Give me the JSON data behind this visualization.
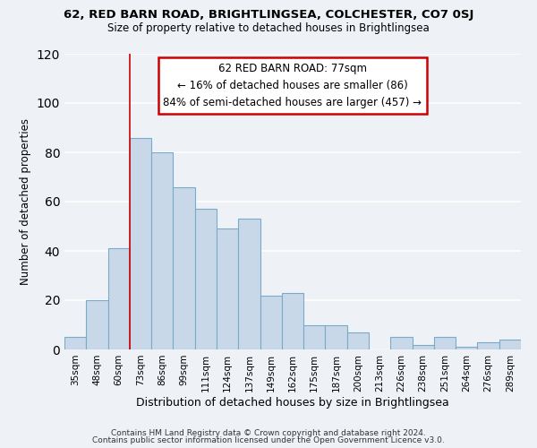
{
  "title1": "62, RED BARN ROAD, BRIGHTLINGSEA, COLCHESTER, CO7 0SJ",
  "title2": "Size of property relative to detached houses in Brightlingsea",
  "xlabel": "Distribution of detached houses by size in Brightlingsea",
  "ylabel": "Number of detached properties",
  "footer1": "Contains HM Land Registry data © Crown copyright and database right 2024.",
  "footer2": "Contains public sector information licensed under the Open Government Licence v3.0.",
  "bar_labels": [
    "35sqm",
    "48sqm",
    "60sqm",
    "73sqm",
    "86sqm",
    "99sqm",
    "111sqm",
    "124sqm",
    "137sqm",
    "149sqm",
    "162sqm",
    "175sqm",
    "187sqm",
    "200sqm",
    "213sqm",
    "226sqm",
    "238sqm",
    "251sqm",
    "264sqm",
    "276sqm",
    "289sqm"
  ],
  "bar_values": [
    5,
    20,
    41,
    86,
    80,
    66,
    57,
    49,
    53,
    22,
    23,
    10,
    10,
    7,
    0,
    5,
    2,
    5,
    1,
    3,
    4
  ],
  "bar_color": "#c8d8e8",
  "bar_edge_color": "#7aaac8",
  "annotation_title": "62 RED BARN ROAD: 77sqm",
  "annotation_line1": "← 16% of detached houses are smaller (86)",
  "annotation_line2": "84% of semi-detached houses are larger (457) →",
  "annotation_box_color": "#ffffff",
  "annotation_box_edge": "#cc0000",
  "vline_color": "#cc0000",
  "ylim": [
    0,
    120
  ],
  "yticks": [
    0,
    20,
    40,
    60,
    80,
    100,
    120
  ],
  "bg_color": "#eef2f7",
  "grid_color": "#ffffff"
}
